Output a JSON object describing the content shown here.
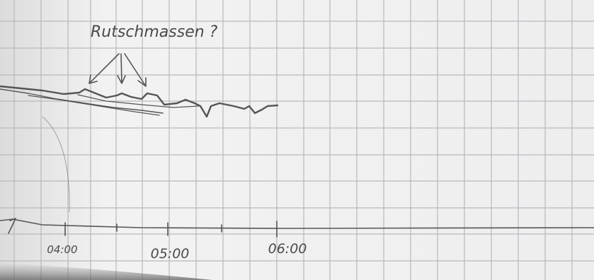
{
  "annotation": {
    "text": "Rutschmassen ?"
  },
  "axis": {
    "labels": [
      "04:00",
      "05:00",
      "06:00"
    ]
  }
}
